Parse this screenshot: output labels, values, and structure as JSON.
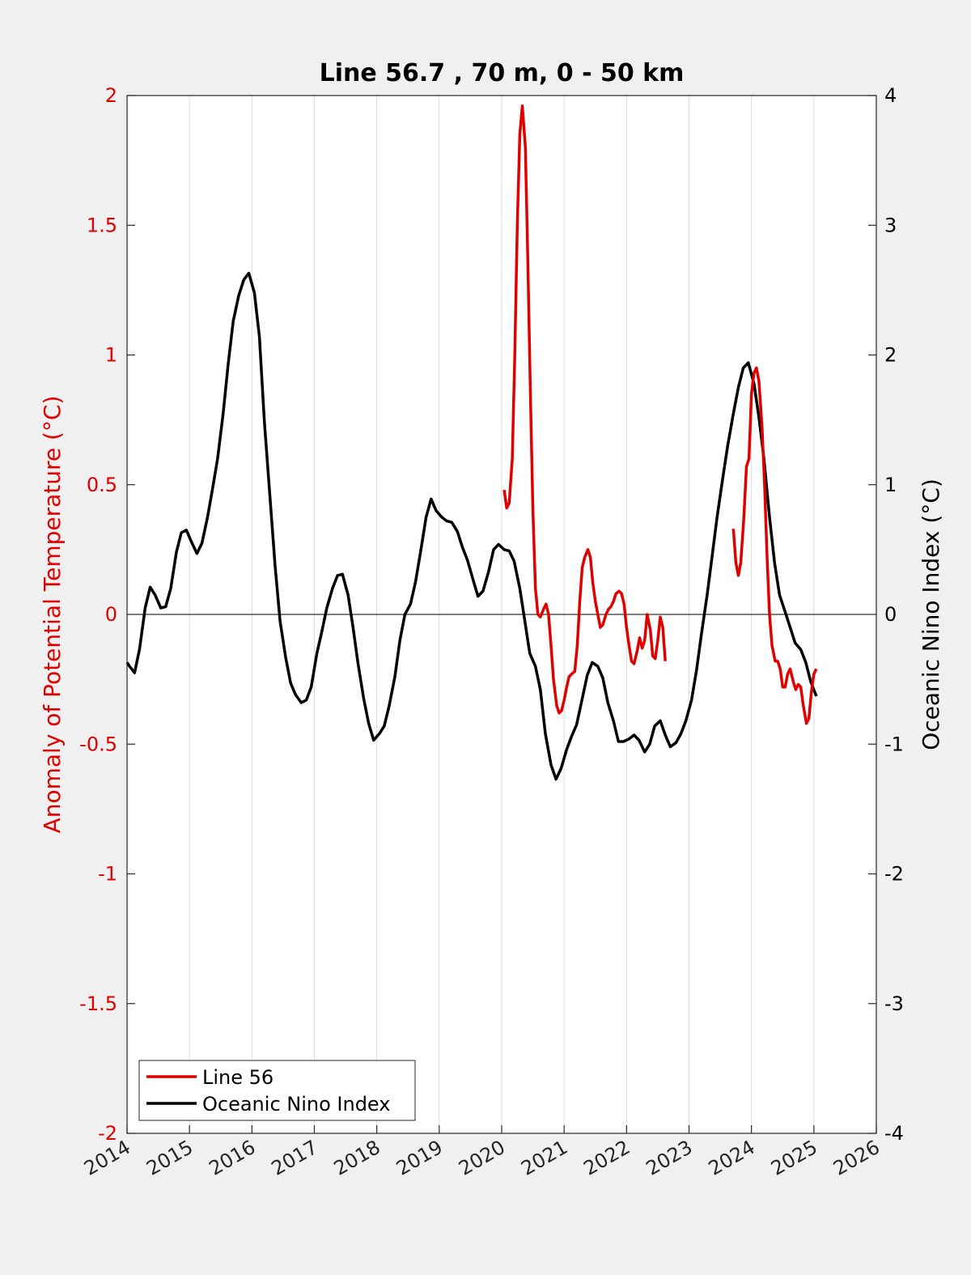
{
  "chart_data": {
    "type": "line",
    "title": "Line 56.7 , 70 m, 0 - 50 km",
    "xlabel": "",
    "ylabel": "Anomaly of Potential Temperature (°C)",
    "ylabel_right": "Oceanic Nino Index (°C)",
    "xlim": [
      2014,
      2026
    ],
    "ylim": [
      -2,
      2
    ],
    "ylim_right": [
      -4,
      4
    ],
    "x_ticks": [
      "2014",
      "2015",
      "2016",
      "2017",
      "2018",
      "2019",
      "2020",
      "2021",
      "2022",
      "2023",
      "2024",
      "2025",
      "2026"
    ],
    "y_ticks": [
      "-2",
      "-1.5",
      "-1",
      "-0.5",
      "0",
      "0.5",
      "1",
      "1.5",
      "2"
    ],
    "y_ticks_right": [
      "-4",
      "-3",
      "-2",
      "-1",
      "0",
      "1",
      "2",
      "3",
      "4"
    ],
    "grid": "vertical",
    "legend_position": "bottom-left",
    "colors": {
      "line56": "#e00000",
      "oni": "#000000",
      "left_axis": "#e00000"
    },
    "series": [
      {
        "name": "Line 56",
        "axis": "left",
        "segments": [
          [
            [
              2020.04,
              0.48
            ],
            [
              2020.08,
              0.41
            ],
            [
              2020.12,
              0.43
            ],
            [
              2020.17,
              0.6
            ],
            [
              2020.21,
              1.0
            ],
            [
              2020.25,
              1.5
            ],
            [
              2020.29,
              1.85
            ],
            [
              2020.33,
              1.96
            ],
            [
              2020.38,
              1.8
            ],
            [
              2020.42,
              1.35
            ],
            [
              2020.46,
              0.85
            ],
            [
              2020.5,
              0.4
            ],
            [
              2020.54,
              0.1
            ],
            [
              2020.58,
              0.0
            ],
            [
              2020.62,
              -0.01
            ],
            [
              2020.67,
              0.02
            ],
            [
              2020.71,
              0.04
            ],
            [
              2020.75,
              0.0
            ],
            [
              2020.79,
              -0.12
            ],
            [
              2020.83,
              -0.25
            ],
            [
              2020.88,
              -0.35
            ],
            [
              2020.92,
              -0.38
            ],
            [
              2020.96,
              -0.37
            ],
            [
              2021.0,
              -0.33
            ],
            [
              2021.04,
              -0.28
            ],
            [
              2021.08,
              -0.24
            ],
            [
              2021.12,
              -0.23
            ],
            [
              2021.17,
              -0.22
            ],
            [
              2021.21,
              -0.12
            ],
            [
              2021.25,
              0.05
            ],
            [
              2021.29,
              0.18
            ],
            [
              2021.33,
              0.22
            ],
            [
              2021.38,
              0.25
            ],
            [
              2021.42,
              0.22
            ],
            [
              2021.46,
              0.12
            ],
            [
              2021.5,
              0.05
            ],
            [
              2021.54,
              0.0
            ],
            [
              2021.58,
              -0.05
            ],
            [
              2021.62,
              -0.04
            ],
            [
              2021.67,
              0.0
            ],
            [
              2021.71,
              0.02
            ],
            [
              2021.75,
              0.03
            ],
            [
              2021.79,
              0.05
            ],
            [
              2021.83,
              0.08
            ],
            [
              2021.88,
              0.09
            ],
            [
              2021.92,
              0.08
            ],
            [
              2021.96,
              0.04
            ],
            [
              2022.0,
              -0.05
            ],
            [
              2022.04,
              -0.12
            ],
            [
              2022.08,
              -0.18
            ],
            [
              2022.12,
              -0.19
            ],
            [
              2022.17,
              -0.14
            ],
            [
              2022.21,
              -0.09
            ],
            [
              2022.25,
              -0.13
            ],
            [
              2022.29,
              -0.1
            ],
            [
              2022.33,
              0.0
            ],
            [
              2022.38,
              -0.06
            ],
            [
              2022.42,
              -0.16
            ],
            [
              2022.46,
              -0.17
            ],
            [
              2022.5,
              -0.1
            ],
            [
              2022.54,
              -0.01
            ],
            [
              2022.58,
              -0.05
            ],
            [
              2022.62,
              -0.18
            ]
          ],
          [
            [
              2023.71,
              0.33
            ],
            [
              2023.75,
              0.2
            ],
            [
              2023.79,
              0.15
            ],
            [
              2023.83,
              0.2
            ],
            [
              2023.88,
              0.38
            ],
            [
              2023.92,
              0.57
            ],
            [
              2023.96,
              0.6
            ],
            [
              2024.0,
              0.85
            ],
            [
              2024.04,
              0.93
            ],
            [
              2024.08,
              0.95
            ],
            [
              2024.12,
              0.9
            ],
            [
              2024.17,
              0.72
            ],
            [
              2024.21,
              0.5
            ],
            [
              2024.25,
              0.22
            ],
            [
              2024.29,
              0.0
            ],
            [
              2024.33,
              -0.12
            ],
            [
              2024.38,
              -0.18
            ],
            [
              2024.42,
              -0.18
            ],
            [
              2024.46,
              -0.21
            ],
            [
              2024.5,
              -0.28
            ],
            [
              2024.54,
              -0.28
            ],
            [
              2024.58,
              -0.23
            ],
            [
              2024.62,
              -0.21
            ],
            [
              2024.67,
              -0.26
            ],
            [
              2024.71,
              -0.29
            ],
            [
              2024.75,
              -0.27
            ],
            [
              2024.79,
              -0.28
            ],
            [
              2024.83,
              -0.35
            ],
            [
              2024.88,
              -0.42
            ],
            [
              2024.92,
              -0.4
            ],
            [
              2024.96,
              -0.3
            ],
            [
              2025.0,
              -0.23
            ],
            [
              2025.04,
              -0.21
            ]
          ]
        ]
      },
      {
        "name": "Oceanic Nino Index",
        "axis": "right",
        "points": [
          [
            2014.0,
            -0.37
          ],
          [
            2014.04,
            -0.4
          ],
          [
            2014.12,
            -0.45
          ],
          [
            2014.2,
            -0.27
          ],
          [
            2014.29,
            0.05
          ],
          [
            2014.37,
            0.21
          ],
          [
            2014.45,
            0.15
          ],
          [
            2014.54,
            0.05
          ],
          [
            2014.62,
            0.06
          ],
          [
            2014.7,
            0.2
          ],
          [
            2014.79,
            0.48
          ],
          [
            2014.87,
            0.63
          ],
          [
            2014.95,
            0.65
          ],
          [
            2015.04,
            0.55
          ],
          [
            2015.12,
            0.47
          ],
          [
            2015.2,
            0.55
          ],
          [
            2015.29,
            0.75
          ],
          [
            2015.37,
            0.97
          ],
          [
            2015.45,
            1.2
          ],
          [
            2015.54,
            1.55
          ],
          [
            2015.62,
            1.93
          ],
          [
            2015.7,
            2.26
          ],
          [
            2015.79,
            2.46
          ],
          [
            2015.87,
            2.58
          ],
          [
            2015.95,
            2.63
          ],
          [
            2016.04,
            2.48
          ],
          [
            2016.12,
            2.14
          ],
          [
            2016.2,
            1.48
          ],
          [
            2016.29,
            0.9
          ],
          [
            2016.37,
            0.38
          ],
          [
            2016.45,
            -0.05
          ],
          [
            2016.54,
            -0.33
          ],
          [
            2016.62,
            -0.53
          ],
          [
            2016.7,
            -0.62
          ],
          [
            2016.79,
            -0.68
          ],
          [
            2016.87,
            -0.66
          ],
          [
            2016.95,
            -0.56
          ],
          [
            2017.04,
            -0.3
          ],
          [
            2017.12,
            -0.13
          ],
          [
            2017.2,
            0.05
          ],
          [
            2017.29,
            0.2
          ],
          [
            2017.37,
            0.3
          ],
          [
            2017.45,
            0.31
          ],
          [
            2017.54,
            0.15
          ],
          [
            2017.62,
            -0.1
          ],
          [
            2017.7,
            -0.38
          ],
          [
            2017.79,
            -0.65
          ],
          [
            2017.87,
            -0.84
          ],
          [
            2017.95,
            -0.97
          ],
          [
            2018.04,
            -0.92
          ],
          [
            2018.12,
            -0.86
          ],
          [
            2018.2,
            -0.7
          ],
          [
            2018.29,
            -0.48
          ],
          [
            2018.37,
            -0.2
          ],
          [
            2018.45,
            0.0
          ],
          [
            2018.54,
            0.08
          ],
          [
            2018.62,
            0.25
          ],
          [
            2018.7,
            0.48
          ],
          [
            2018.79,
            0.75
          ],
          [
            2018.87,
            0.89
          ],
          [
            2018.95,
            0.8
          ],
          [
            2019.04,
            0.75
          ],
          [
            2019.12,
            0.72
          ],
          [
            2019.2,
            0.71
          ],
          [
            2019.29,
            0.64
          ],
          [
            2019.37,
            0.52
          ],
          [
            2019.45,
            0.42
          ],
          [
            2019.54,
            0.27
          ],
          [
            2019.62,
            0.14
          ],
          [
            2019.7,
            0.18
          ],
          [
            2019.79,
            0.33
          ],
          [
            2019.87,
            0.5
          ],
          [
            2019.95,
            0.54
          ],
          [
            2020.04,
            0.5
          ],
          [
            2020.12,
            0.49
          ],
          [
            2020.2,
            0.41
          ],
          [
            2020.29,
            0.2
          ],
          [
            2020.37,
            -0.05
          ],
          [
            2020.45,
            -0.3
          ],
          [
            2020.54,
            -0.4
          ],
          [
            2020.62,
            -0.58
          ],
          [
            2020.7,
            -0.92
          ],
          [
            2020.79,
            -1.16
          ],
          [
            2020.87,
            -1.27
          ],
          [
            2020.95,
            -1.19
          ],
          [
            2021.04,
            -1.04
          ],
          [
            2021.12,
            -0.94
          ],
          [
            2021.2,
            -0.85
          ],
          [
            2021.29,
            -0.65
          ],
          [
            2021.37,
            -0.47
          ],
          [
            2021.45,
            -0.37
          ],
          [
            2021.54,
            -0.4
          ],
          [
            2021.62,
            -0.49
          ],
          [
            2021.7,
            -0.68
          ],
          [
            2021.79,
            -0.82
          ],
          [
            2021.87,
            -0.98
          ],
          [
            2021.95,
            -0.98
          ],
          [
            2022.04,
            -0.96
          ],
          [
            2022.12,
            -0.93
          ],
          [
            2022.2,
            -0.97
          ],
          [
            2022.29,
            -1.06
          ],
          [
            2022.37,
            -1.0
          ],
          [
            2022.45,
            -0.86
          ],
          [
            2022.54,
            -0.82
          ],
          [
            2022.62,
            -0.93
          ],
          [
            2022.7,
            -1.02
          ],
          [
            2022.79,
            -0.99
          ],
          [
            2022.87,
            -0.92
          ],
          [
            2022.95,
            -0.82
          ],
          [
            2023.04,
            -0.66
          ],
          [
            2023.12,
            -0.43
          ],
          [
            2023.2,
            -0.15
          ],
          [
            2023.29,
            0.15
          ],
          [
            2023.37,
            0.45
          ],
          [
            2023.45,
            0.75
          ],
          [
            2023.54,
            1.05
          ],
          [
            2023.62,
            1.3
          ],
          [
            2023.7,
            1.52
          ],
          [
            2023.79,
            1.75
          ],
          [
            2023.87,
            1.9
          ],
          [
            2023.95,
            1.94
          ],
          [
            2024.04,
            1.78
          ],
          [
            2024.12,
            1.52
          ],
          [
            2024.2,
            1.2
          ],
          [
            2024.29,
            0.75
          ],
          [
            2024.37,
            0.4
          ],
          [
            2024.45,
            0.15
          ],
          [
            2024.54,
            0.02
          ],
          [
            2024.62,
            -0.1
          ],
          [
            2024.7,
            -0.22
          ],
          [
            2024.79,
            -0.27
          ],
          [
            2024.87,
            -0.37
          ],
          [
            2024.95,
            -0.52
          ],
          [
            2025.04,
            -0.63
          ]
        ]
      }
    ],
    "legend": [
      "Line 56",
      "Oceanic Nino Index"
    ]
  }
}
